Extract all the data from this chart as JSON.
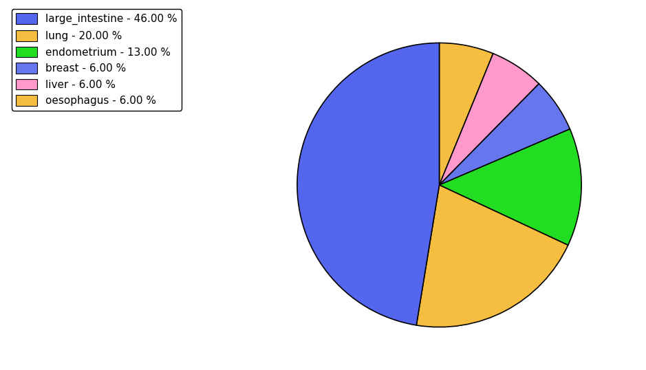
{
  "plot_values": [
    6,
    6,
    6,
    13,
    20,
    46
  ],
  "plot_colors": [
    "#f5be41",
    "#ff99cc",
    "#6677ee",
    "#22dd22",
    "#f5be41",
    "#5566ee"
  ],
  "legend_labels": [
    "large_intestine - 46.00 %",
    "lung - 20.00 %",
    "endometrium - 13.00 %",
    "breast - 6.00 %",
    "liver - 6.00 %",
    "oesophagus - 6.00 %"
  ],
  "legend_colors": [
    "#5566ee",
    "#f5be41",
    "#22dd22",
    "#6677ee",
    "#ff99cc",
    "#f5be41"
  ],
  "figsize": [
    9.39,
    5.38
  ],
  "dpi": 100,
  "startangle": 90
}
